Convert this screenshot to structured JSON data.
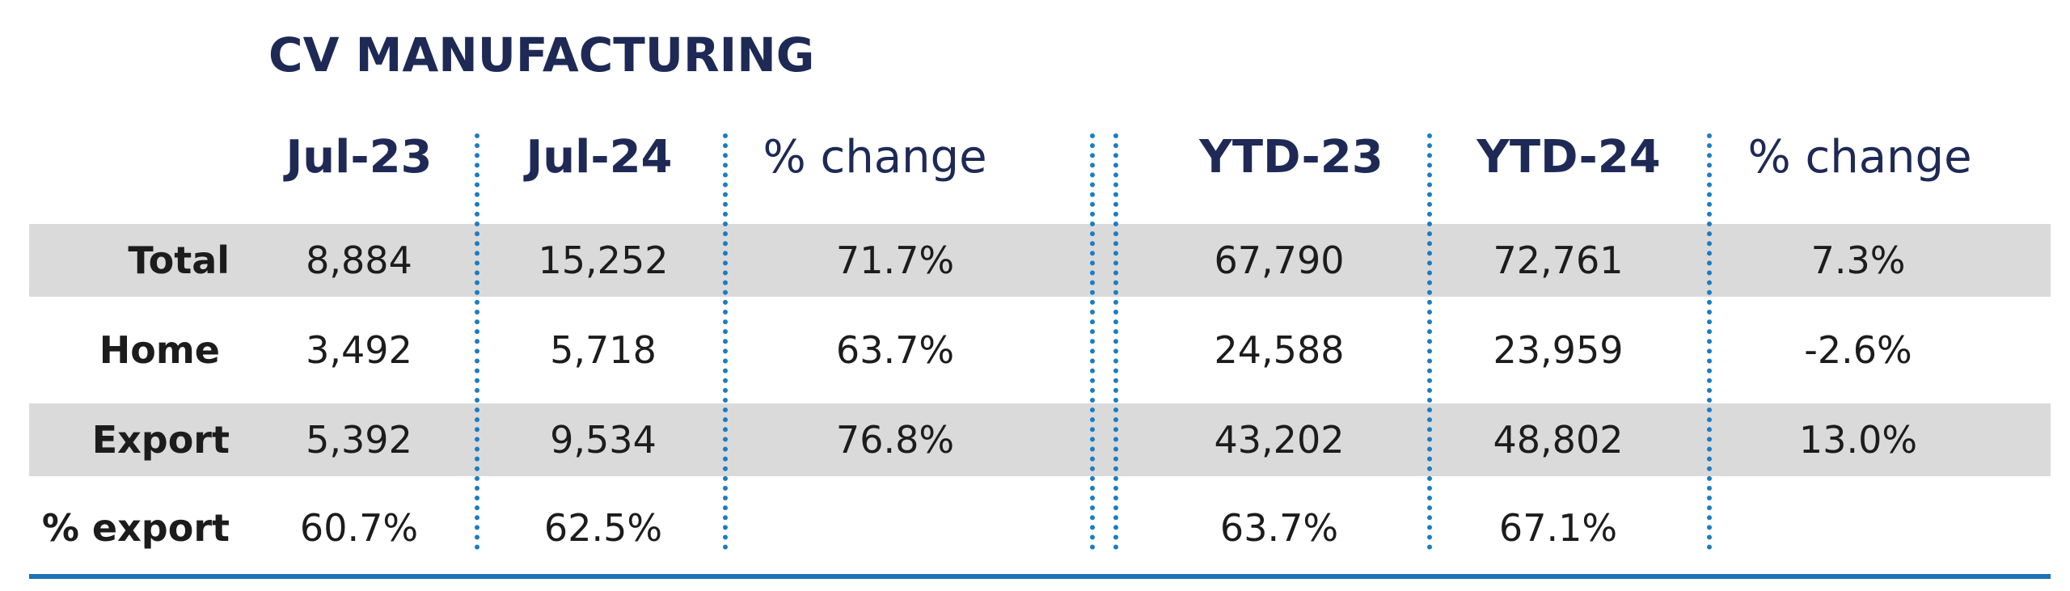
{
  "title": "CV MANUFACTURING",
  "columns": {
    "jul23": "Jul-23",
    "jul24": "Jul-24",
    "pct_month": "% change",
    "ytd23": "YTD-23",
    "ytd24": "YTD-24",
    "pct_ytd": "% change"
  },
  "rows": [
    {
      "label": "Total",
      "jul23": "8,884",
      "jul24": "15,252",
      "pct_month": "71.7%",
      "ytd23": "67,790",
      "ytd24": "72,761",
      "pct_ytd": "7.3%"
    },
    {
      "label": "Home",
      "jul23": "3,492",
      "jul24": "5,718",
      "pct_month": "63.7%",
      "ytd23": "24,588",
      "ytd24": "23,959",
      "pct_ytd": "-2.6%"
    },
    {
      "label": "Export",
      "jul23": "5,392",
      "jul24": "9,534",
      "pct_month": "76.8%",
      "ytd23": "43,202",
      "ytd24": "48,802",
      "pct_ytd": "13.0%"
    },
    {
      "label": "% export",
      "jul23": "60.7%",
      "jul24": "62.5%",
      "pct_month": "",
      "ytd23": "63.7%",
      "ytd24": "67.1%",
      "pct_ytd": ""
    }
  ],
  "colors": {
    "heading": "#1e2a55",
    "divider": "#1a7dc4",
    "row_band": "#dadada",
    "rule": "#1a72b8"
  }
}
